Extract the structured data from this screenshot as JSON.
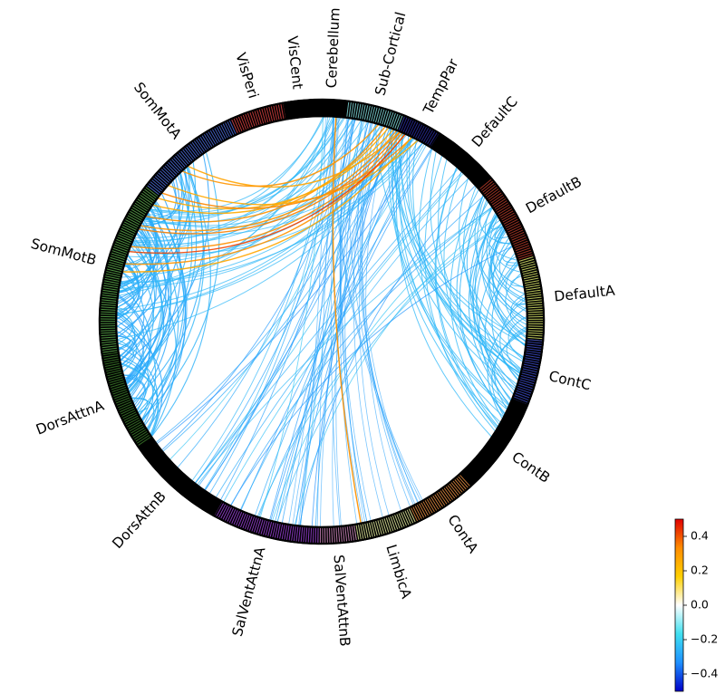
{
  "networks": [
    {
      "name": "Cerebellum",
      "color": "#111111"
    },
    {
      "name": "Sub-Cortical",
      "color": "#7fd8d8"
    },
    {
      "name": "TempPar",
      "color": "#2a2a9a"
    },
    {
      "name": "DefaultC",
      "color": "#111111"
    },
    {
      "name": "DefaultB",
      "color": "#b23a2a"
    },
    {
      "name": "DefaultA",
      "color": "#d8e46a"
    },
    {
      "name": "ContC",
      "color": "#3a48c0"
    },
    {
      "name": "ContB",
      "color": "#111111"
    },
    {
      "name": "ContA",
      "color": "#e08a40"
    },
    {
      "name": "LimbicA",
      "color": "#dfe89a"
    },
    {
      "name": "SalVentAttnB",
      "color": "#d088c0"
    },
    {
      "name": "SalVentAttnA",
      "color": "#9a40d8"
    },
    {
      "name": "DorsAttnB",
      "color": "#111111"
    },
    {
      "name": "DorsAttnA",
      "color": "#3a7a2a"
    },
    {
      "name": "SomMotB",
      "color": "#5aa84a"
    },
    {
      "name": "SomMotA",
      "color": "#4a6ad8"
    },
    {
      "name": "VisPeri",
      "color": "#d84040"
    },
    {
      "name": "VisCent",
      "color": "#111111"
    }
  ],
  "colorbar": {
    "min": -0.5,
    "max": 0.5,
    "ticks": [
      "0.4",
      "0.2",
      "0.0",
      "−0.2",
      "−0.4"
    ],
    "tick_values": [
      0.4,
      0.2,
      0.0,
      -0.2,
      -0.4
    ],
    "colormap": [
      "#0000c8",
      "#1e90ff",
      "#40e0f0",
      "#ffffff",
      "#ffd000",
      "#ff8c00",
      "#e00000"
    ]
  }
}
